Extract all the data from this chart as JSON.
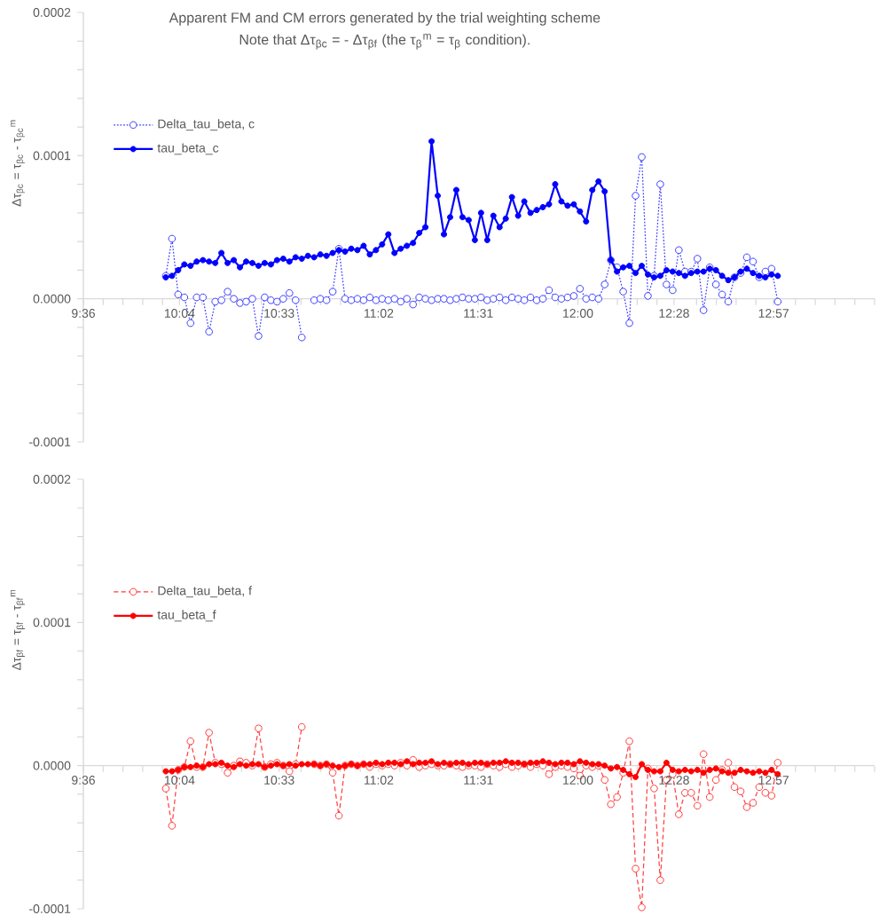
{
  "chart_data": [
    {
      "type": "line",
      "title": "Apparent FM and CM errors generated by the trial weighting scheme",
      "subtitle": "Note that Δτ$_{βc}$ = - Δτ$_{βf}$ (the τ$_{β}$$^{m}$ = τ$_{β}$ condition).",
      "ylabel": "Δτ$_{βc}$ = τ$_{βc}$ - τ$_{βc}$$^{m}$",
      "x": [
        10.0,
        10.03,
        10.06,
        10.09,
        10.12,
        10.15,
        10.18,
        10.21,
        10.24,
        10.27,
        10.3,
        10.33,
        10.36,
        10.39,
        10.42,
        10.45,
        10.48,
        10.51,
        10.54,
        10.57,
        10.6,
        10.63,
        10.66,
        10.69,
        10.72,
        10.75,
        10.78,
        10.81,
        10.84,
        10.87,
        10.9,
        10.93,
        10.96,
        10.99,
        11.02,
        11.05,
        11.08,
        11.11,
        11.14,
        11.17,
        11.2,
        11.23,
        11.26,
        11.29,
        11.32,
        11.35,
        11.38,
        11.41,
        11.44,
        11.47,
        11.5,
        11.53,
        11.56,
        11.59,
        11.62,
        11.65,
        11.68,
        11.71,
        11.74,
        11.77,
        11.8,
        11.83,
        11.86,
        11.89,
        11.92,
        11.95,
        11.98,
        12.01,
        12.04,
        12.07,
        12.1,
        12.13,
        12.16,
        12.19,
        12.22,
        12.25,
        12.28,
        12.31,
        12.34,
        12.37,
        12.4,
        12.43,
        12.46,
        12.49,
        12.52,
        12.55,
        12.58,
        12.61,
        12.64,
        12.67,
        12.7,
        12.73,
        12.76,
        12.79,
        12.82,
        12.85,
        12.88,
        12.91,
        12.94,
        12.97
      ],
      "xlim": [
        9.6,
        13.44
      ],
      "xticks": [
        {
          "value": 9.6,
          "label": "9:36"
        },
        {
          "value": 9.696,
          "label": null
        },
        {
          "value": 9.792,
          "label": null
        },
        {
          "value": 9.888,
          "label": null
        },
        {
          "value": 9.984,
          "label": null
        },
        {
          "value": 10.0667,
          "label": "10:04"
        },
        {
          "value": 10.176,
          "label": null
        },
        {
          "value": 10.272,
          "label": null
        },
        {
          "value": 10.368,
          "label": null
        },
        {
          "value": 10.464,
          "label": null
        },
        {
          "value": 10.55,
          "label": "10:33"
        },
        {
          "value": 10.656,
          "label": null
        },
        {
          "value": 10.752,
          "label": null
        },
        {
          "value": 10.848,
          "label": null
        },
        {
          "value": 10.944,
          "label": null
        },
        {
          "value": 11.0333,
          "label": "11:02"
        },
        {
          "value": 11.136,
          "label": null
        },
        {
          "value": 11.232,
          "label": null
        },
        {
          "value": 11.328,
          "label": null
        },
        {
          "value": 11.424,
          "label": null
        },
        {
          "value": 11.5167,
          "label": "11:31"
        },
        {
          "value": 11.616,
          "label": null
        },
        {
          "value": 11.712,
          "label": null
        },
        {
          "value": 11.808,
          "label": null
        },
        {
          "value": 11.904,
          "label": null
        },
        {
          "value": 12.0,
          "label": "12:00"
        },
        {
          "value": 12.096,
          "label": null
        },
        {
          "value": 12.192,
          "label": null
        },
        {
          "value": 12.288,
          "label": null
        },
        {
          "value": 12.384,
          "label": null
        },
        {
          "value": 12.4667,
          "label": "12:28"
        },
        {
          "value": 12.576,
          "label": null
        },
        {
          "value": 12.672,
          "label": null
        },
        {
          "value": 12.768,
          "label": null
        },
        {
          "value": 12.864,
          "label": null
        },
        {
          "value": 12.95,
          "label": "12:57"
        },
        {
          "value": 13.056,
          "label": null
        },
        {
          "value": 13.152,
          "label": null
        },
        {
          "value": 13.248,
          "label": null
        },
        {
          "value": 13.344,
          "label": null
        },
        {
          "value": 13.44,
          "label": null
        }
      ],
      "ylim": [
        -0.0001,
        0.0002
      ],
      "yticks": [
        {
          "value": -0.0001,
          "label": "-0.0001"
        },
        {
          "value": -8e-05,
          "label": null
        },
        {
          "value": -6e-05,
          "label": null
        },
        {
          "value": -4e-05,
          "label": null
        },
        {
          "value": -2e-05,
          "label": null
        },
        {
          "value": 0,
          "label": "0.0000"
        },
        {
          "value": 2e-05,
          "label": null
        },
        {
          "value": 4e-05,
          "label": null
        },
        {
          "value": 6e-05,
          "label": null
        },
        {
          "value": 8e-05,
          "label": null
        },
        {
          "value": 0.0001,
          "label": "0.0001"
        },
        {
          "value": 0.00012,
          "label": null
        },
        {
          "value": 0.00014,
          "label": null
        },
        {
          "value": 0.00016,
          "label": null
        },
        {
          "value": 0.00018,
          "label": null
        },
        {
          "value": 0.0002,
          "label": "0.0002"
        }
      ],
      "legend": "top left",
      "series": [
        {
          "name": "Delta_tau_beta, c",
          "color": "#3c3cff",
          "marker": "circle",
          "line_style": "dotted",
          "values": [
            1.6e-05,
            4.2e-05,
            3e-06,
            1e-06,
            -1.7e-05,
            1e-06,
            1e-06,
            -2.3e-05,
            -2e-06,
            -1e-06,
            5e-06,
            0.0,
            -3e-06,
            -2e-06,
            0.0,
            -2.6e-05,
            1e-06,
            -1e-06,
            -2e-06,
            0.0,
            4e-06,
            -1e-06,
            -2.7e-05,
            null,
            -1e-06,
            0.0,
            -1e-06,
            5e-06,
            3.5e-05,
            0.0,
            -1e-06,
            0.0,
            -1e-06,
            1e-06,
            -1e-06,
            0.0,
            -1e-06,
            0.0,
            -2e-06,
            0.0,
            -4e-06,
            1e-06,
            0.0,
            -1e-06,
            0.0,
            0.0,
            -1e-06,
            0.0,
            1e-06,
            0.0,
            0.0,
            1e-06,
            -1e-06,
            0.0,
            1e-06,
            -1e-06,
            1e-06,
            0.0,
            -1e-06,
            1e-06,
            -1e-06,
            0.0,
            6e-06,
            1e-06,
            0.0,
            1e-06,
            2e-06,
            7e-06,
            0.0,
            1e-06,
            0.0,
            1e-05,
            2.7e-05,
            2.2e-05,
            5e-06,
            -1.7e-05,
            7.2e-05,
            9.9e-05,
            2e-06,
            1.6e-05,
            8e-05,
            1e-05,
            6e-06,
            3.4e-05,
            1.9e-05,
            1.9e-05,
            2.8e-05,
            -8e-06,
            2.2e-05,
            1e-05,
            3e-06,
            -2e-06,
            1.5e-05,
            1.8e-05,
            2.9e-05,
            2.6e-05,
            1.5e-05,
            1.9e-05,
            2.1e-05,
            -2e-06
          ]
        },
        {
          "name": "tau_beta_c",
          "color": "#0000ff",
          "marker": "circle",
          "line_style": "solid",
          "values": [
            1.5e-05,
            1.6e-05,
            2e-05,
            2.4e-05,
            2.3e-05,
            2.6e-05,
            2.7e-05,
            2.6e-05,
            2.5e-05,
            3.2e-05,
            2.5e-05,
            2.7e-05,
            2.2e-05,
            2.6e-05,
            2.5e-05,
            2.3e-05,
            2.5e-05,
            2.4e-05,
            2.7e-05,
            2.8e-05,
            2.6e-05,
            2.9e-05,
            2.8e-05,
            3e-05,
            2.9e-05,
            3.1e-05,
            3e-05,
            3.2e-05,
            3.4e-05,
            3.3e-05,
            3.5e-05,
            3.4e-05,
            3.7e-05,
            3.1e-05,
            3.4e-05,
            3.8e-05,
            4.5e-05,
            3.2e-05,
            3.5e-05,
            3.7e-05,
            3.9e-05,
            4.6e-05,
            5e-05,
            0.00011,
            7.2e-05,
            4.5e-05,
            5.7e-05,
            7.6e-05,
            5.7e-05,
            5.5e-05,
            4.1e-05,
            6e-05,
            4.1e-05,
            5.8e-05,
            5e-05,
            5.6e-05,
            7.1e-05,
            5.8e-05,
            6.8e-05,
            6e-05,
            6.2e-05,
            6.4e-05,
            6.6e-05,
            8e-05,
            6.8e-05,
            6.5e-05,
            6.6e-05,
            6.1e-05,
            5.4e-05,
            7.6e-05,
            8.2e-05,
            7.5e-05,
            2.7e-05,
            1.9e-05,
            2.2e-05,
            2.3e-05,
            1.8e-05,
            2.3e-05,
            1.7e-05,
            1.5e-05,
            1.6e-05,
            2e-05,
            1.9e-05,
            1.8e-05,
            1.6e-05,
            1.8e-05,
            1.9e-05,
            1.9e-05,
            2.1e-05,
            2e-05,
            1.6e-05,
            1.3e-05,
            1.5e-05,
            1.9e-05,
            2.1e-05,
            1.8e-05,
            1.6e-05,
            1.5e-05,
            1.7e-05,
            1.6e-05
          ]
        }
      ]
    },
    {
      "type": "line",
      "ylabel": "Δτ$_{βf}$ = τ$_{βf}$ - τ$_{βf}$$^{m}$",
      "x": [
        10.0,
        10.03,
        10.06,
        10.09,
        10.12,
        10.15,
        10.18,
        10.21,
        10.24,
        10.27,
        10.3,
        10.33,
        10.36,
        10.39,
        10.42,
        10.45,
        10.48,
        10.51,
        10.54,
        10.57,
        10.6,
        10.63,
        10.66,
        10.69,
        10.72,
        10.75,
        10.78,
        10.81,
        10.84,
        10.87,
        10.9,
        10.93,
        10.96,
        10.99,
        11.02,
        11.05,
        11.08,
        11.11,
        11.14,
        11.17,
        11.2,
        11.23,
        11.26,
        11.29,
        11.32,
        11.35,
        11.38,
        11.41,
        11.44,
        11.47,
        11.5,
        11.53,
        11.56,
        11.59,
        11.62,
        11.65,
        11.68,
        11.71,
        11.74,
        11.77,
        11.8,
        11.83,
        11.86,
        11.89,
        11.92,
        11.95,
        11.98,
        12.01,
        12.04,
        12.07,
        12.1,
        12.13,
        12.16,
        12.19,
        12.22,
        12.25,
        12.28,
        12.31,
        12.34,
        12.37,
        12.4,
        12.43,
        12.46,
        12.49,
        12.52,
        12.55,
        12.58,
        12.61,
        12.64,
        12.67,
        12.7,
        12.73,
        12.76,
        12.79,
        12.82,
        12.85,
        12.88,
        12.91,
        12.94,
        12.97
      ],
      "xlim": [
        9.6,
        13.44
      ],
      "xticks": [
        {
          "value": 9.6,
          "label": "9:36"
        },
        {
          "value": 9.696,
          "label": null
        },
        {
          "value": 9.792,
          "label": null
        },
        {
          "value": 9.888,
          "label": null
        },
        {
          "value": 9.984,
          "label": null
        },
        {
          "value": 10.0667,
          "label": "10:04"
        },
        {
          "value": 10.176,
          "label": null
        },
        {
          "value": 10.272,
          "label": null
        },
        {
          "value": 10.368,
          "label": null
        },
        {
          "value": 10.464,
          "label": null
        },
        {
          "value": 10.55,
          "label": "10:33"
        },
        {
          "value": 10.656,
          "label": null
        },
        {
          "value": 10.752,
          "label": null
        },
        {
          "value": 10.848,
          "label": null
        },
        {
          "value": 10.944,
          "label": null
        },
        {
          "value": 11.0333,
          "label": "11:02"
        },
        {
          "value": 11.136,
          "label": null
        },
        {
          "value": 11.232,
          "label": null
        },
        {
          "value": 11.328,
          "label": null
        },
        {
          "value": 11.424,
          "label": null
        },
        {
          "value": 11.5167,
          "label": "11:31"
        },
        {
          "value": 11.616,
          "label": null
        },
        {
          "value": 11.712,
          "label": null
        },
        {
          "value": 11.808,
          "label": null
        },
        {
          "value": 11.904,
          "label": null
        },
        {
          "value": 12.0,
          "label": "12:00"
        },
        {
          "value": 12.096,
          "label": null
        },
        {
          "value": 12.192,
          "label": null
        },
        {
          "value": 12.288,
          "label": null
        },
        {
          "value": 12.384,
          "label": null
        },
        {
          "value": 12.4667,
          "label": "12:28"
        },
        {
          "value": 12.576,
          "label": null
        },
        {
          "value": 12.672,
          "label": null
        },
        {
          "value": 12.768,
          "label": null
        },
        {
          "value": 12.864,
          "label": null
        },
        {
          "value": 12.95,
          "label": "12:57"
        },
        {
          "value": 13.056,
          "label": null
        },
        {
          "value": 13.152,
          "label": null
        },
        {
          "value": 13.248,
          "label": null
        },
        {
          "value": 13.344,
          "label": null
        },
        {
          "value": 13.44,
          "label": null
        }
      ],
      "ylim": [
        -0.0001,
        0.0002
      ],
      "yticks": [
        {
          "value": -0.0001,
          "label": "-0.0001"
        },
        {
          "value": -8e-05,
          "label": null
        },
        {
          "value": -6e-05,
          "label": null
        },
        {
          "value": -4e-05,
          "label": null
        },
        {
          "value": -2e-05,
          "label": null
        },
        {
          "value": 0,
          "label": "0.0000"
        },
        {
          "value": 2e-05,
          "label": null
        },
        {
          "value": 4e-05,
          "label": null
        },
        {
          "value": 6e-05,
          "label": null
        },
        {
          "value": 8e-05,
          "label": null
        },
        {
          "value": 0.0001,
          "label": "0.0001"
        },
        {
          "value": 0.00012,
          "label": null
        },
        {
          "value": 0.00014,
          "label": null
        },
        {
          "value": 0.00016,
          "label": null
        },
        {
          "value": 0.00018,
          "label": null
        },
        {
          "value": 0.0002,
          "label": "0.0002"
        }
      ],
      "legend": "top left",
      "series": [
        {
          "name": "Delta_tau_beta, f",
          "color": "#ff3c3c",
          "marker": "circle",
          "line_style": "dashed",
          "values": [
            -1.6e-05,
            -4.2e-05,
            -3e-06,
            -1e-06,
            1.7e-05,
            -1e-06,
            -1e-06,
            2.3e-05,
            2e-06,
            1e-06,
            -5e-06,
            0.0,
            3e-06,
            2e-06,
            0.0,
            2.6e-05,
            -1e-06,
            1e-06,
            2e-06,
            0.0,
            -4e-06,
            1e-06,
            2.7e-05,
            null,
            1e-06,
            0.0,
            1e-06,
            -5e-06,
            -3.5e-05,
            0.0,
            1e-06,
            0.0,
            1e-06,
            -1e-06,
            1e-06,
            0.0,
            1e-06,
            0.0,
            2e-06,
            0.0,
            4e-06,
            -1e-06,
            0.0,
            1e-06,
            0.0,
            0.0,
            1e-06,
            0.0,
            -1e-06,
            0.0,
            0.0,
            -1e-06,
            1e-06,
            0.0,
            -1e-06,
            1e-06,
            -1e-06,
            0.0,
            1e-06,
            -1e-06,
            1e-06,
            0.0,
            -6e-06,
            -1e-06,
            0.0,
            -1e-06,
            -2e-06,
            -7e-06,
            0.0,
            -1e-06,
            0.0,
            -1e-05,
            -2.7e-05,
            -2.2e-05,
            -5e-06,
            1.7e-05,
            -7.2e-05,
            -9.9e-05,
            -2e-06,
            -1.6e-05,
            -8e-05,
            -1e-05,
            -6e-06,
            -3.4e-05,
            -1.9e-05,
            -1.9e-05,
            -2.8e-05,
            8e-06,
            -2.2e-05,
            -1e-05,
            -3e-06,
            2e-06,
            -1.5e-05,
            -1.8e-05,
            -2.9e-05,
            -2.6e-05,
            -1.5e-05,
            -1.9e-05,
            -2.1e-05,
            2e-06
          ]
        },
        {
          "name": "tau_beta_f",
          "color": "#ff0000",
          "marker": "circle",
          "line_style": "solid",
          "values": [
            -4e-06,
            -4e-06,
            -3e-06,
            -1e-06,
            -1e-06,
            0.0,
            -1e-06,
            1e-06,
            1e-06,
            2e-06,
            0.0,
            -1e-06,
            1e-06,
            0.0,
            1e-06,
            1e-06,
            -1e-06,
            0.0,
            1e-06,
            0.0,
            1e-06,
            0.0,
            1e-06,
            1e-06,
            1e-06,
            0.0,
            1e-06,
            0.0,
            -1e-06,
            0.0,
            1e-06,
            0.0,
            1e-06,
            1e-06,
            2e-06,
            1e-06,
            2e-06,
            2e-06,
            1e-06,
            3e-06,
            1e-06,
            2e-06,
            2e-06,
            3e-06,
            1e-06,
            2e-06,
            1e-06,
            2e-06,
            2e-06,
            1e-06,
            2e-06,
            2e-06,
            1e-06,
            2e-06,
            2e-06,
            3e-06,
            2e-06,
            2e-06,
            1e-06,
            2e-06,
            2e-06,
            3e-06,
            2e-06,
            1e-06,
            2e-06,
            2e-06,
            1e-06,
            3e-06,
            2e-06,
            1e-06,
            1e-06,
            0.0,
            -2e-06,
            -1e-06,
            -3e-06,
            -6e-06,
            -8e-06,
            1e-06,
            -3e-06,
            -4e-06,
            -4e-06,
            2e-06,
            -3e-06,
            -4e-06,
            -3e-06,
            -4e-06,
            -3e-06,
            -5e-06,
            -3e-06,
            -2e-06,
            -4e-06,
            -5e-06,
            -5e-06,
            -3e-06,
            -4e-06,
            -5e-06,
            -4e-06,
            -5e-06,
            -3e-06,
            -6e-06
          ]
        }
      ]
    }
  ]
}
